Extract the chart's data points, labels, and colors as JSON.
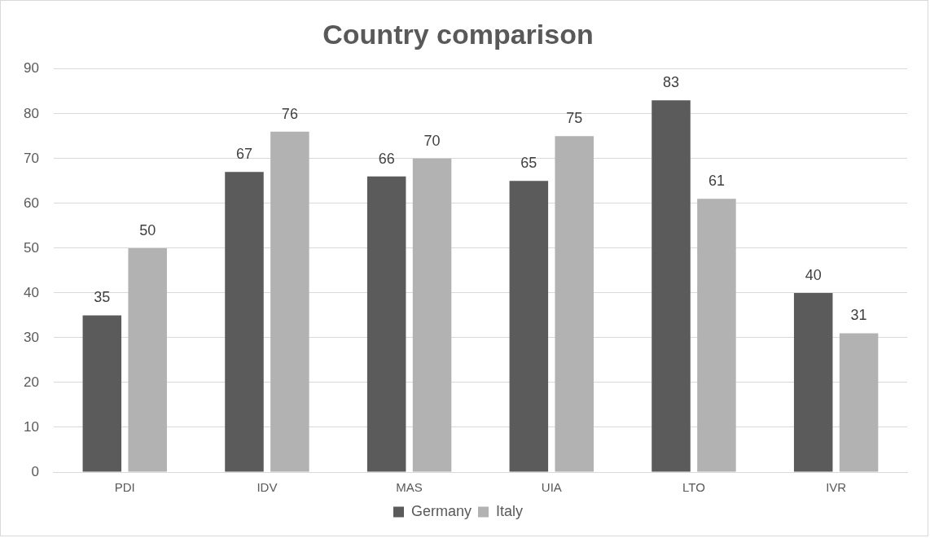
{
  "chart_data": {
    "type": "bar",
    "title": "Country comparison",
    "categories": [
      "PDI",
      "IDV",
      "MAS",
      "UIA",
      "LTO",
      "IVR"
    ],
    "series": [
      {
        "name": "Germany",
        "color": "#5b5b5b",
        "values": [
          35,
          67,
          66,
          65,
          83,
          40
        ]
      },
      {
        "name": "Italy",
        "color": "#b2b2b2",
        "values": [
          50,
          76,
          70,
          75,
          61,
          31
        ]
      }
    ],
    "ylim": [
      0,
      90
    ],
    "yticks": [
      0,
      10,
      20,
      30,
      40,
      50,
      60,
      70,
      80,
      90
    ],
    "grid": "y",
    "legend": "bottom",
    "data_labels": true
  }
}
